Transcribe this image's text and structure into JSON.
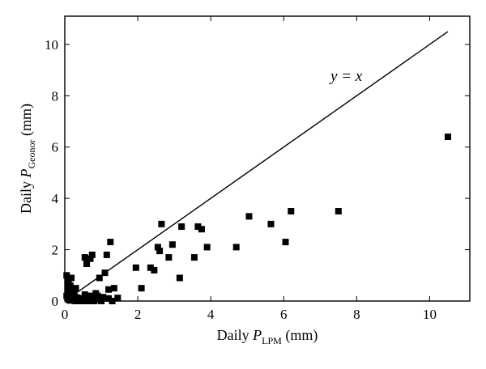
{
  "chart_data": {
    "type": "scatter",
    "title": "",
    "xlabel": {
      "prefix": "Daily ",
      "var": "P",
      "sub": "LPM",
      "suffix": " (mm)"
    },
    "ylabel": {
      "prefix": "Daily ",
      "var": "P",
      "sub": "Geonor",
      "suffix": " (mm)"
    },
    "xlim": [
      0,
      11.1
    ],
    "ylim": [
      0,
      11.1
    ],
    "xticks": [
      0,
      2,
      4,
      6,
      8,
      10
    ],
    "yticks": [
      0,
      2,
      4,
      6,
      8,
      10
    ],
    "grid": false,
    "legend": "none",
    "reference_line": {
      "label": "y = x",
      "from": [
        0,
        0
      ],
      "to": [
        10.5,
        10.5
      ]
    },
    "marker": "square",
    "marker_color": "#000000",
    "series": [
      {
        "x": [
          0.05,
          0.08,
          0.1,
          0.12,
          0.15,
          0.18,
          0.2,
          0.22,
          0.25,
          0.28,
          0.3,
          0.05,
          0.1,
          0.15,
          0.2,
          0.25,
          0.3,
          0.35,
          0.1,
          0.2,
          0.3,
          0.4,
          0.15,
          0.25,
          0.35,
          0.08,
          0.18,
          0.45,
          0.5,
          0.55,
          0.6,
          0.65,
          0.7,
          0.75,
          0.8,
          0.85,
          0.9,
          0.95,
          1.0,
          1.05,
          1.2,
          1.3,
          1.45,
          0.55,
          0.6,
          0.7,
          0.75,
          0.95,
          1.1,
          1.15,
          1.2,
          1.25,
          1.35,
          1.95,
          2.1,
          2.35,
          2.45,
          2.55,
          2.6,
          2.65,
          2.85,
          2.95,
          3.15,
          3.2,
          3.55,
          3.65,
          3.75,
          3.9,
          4.7,
          5.05,
          5.65,
          6.05,
          6.2,
          7.5,
          10.5
        ],
        "y": [
          1.0,
          0.7,
          0.5,
          0.4,
          0.3,
          0.2,
          0.15,
          0.1,
          0.05,
          0.02,
          0.0,
          0.2,
          0.8,
          0.6,
          0.1,
          0.3,
          0.15,
          0.05,
          0.05,
          0.35,
          0.5,
          0.0,
          0.02,
          0.25,
          0.12,
          0.45,
          0.9,
          0.1,
          0.0,
          0.25,
          0.15,
          0.0,
          0.2,
          0.1,
          0.0,
          0.3,
          0.2,
          0.05,
          0.0,
          0.15,
          0.1,
          0.0,
          0.12,
          1.7,
          1.45,
          1.65,
          1.8,
          0.9,
          1.1,
          1.8,
          0.45,
          2.3,
          0.5,
          1.3,
          0.5,
          1.3,
          1.2,
          2.1,
          1.95,
          3.0,
          1.7,
          2.2,
          0.9,
          2.9,
          1.7,
          2.9,
          2.8,
          2.1,
          2.1,
          3.3,
          3.0,
          2.3,
          3.5,
          3.5,
          6.4
        ]
      }
    ]
  }
}
